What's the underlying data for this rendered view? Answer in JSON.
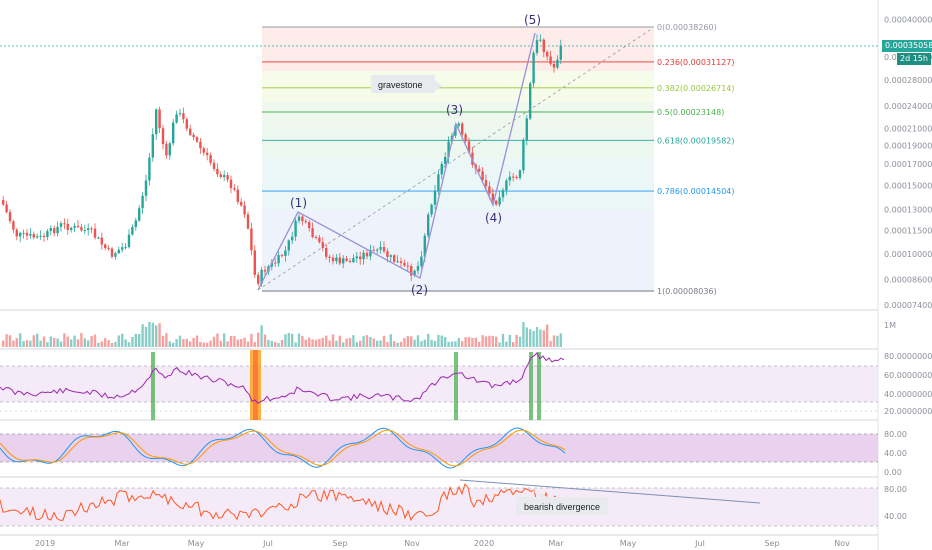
{
  "chart_data": {
    "type": "candlestick",
    "price_axis": {
      "scale": "log",
      "ticks": [
        "0.00040000",
        "0.00032000",
        "0.00028000",
        "0.00024000",
        "0.00021000",
        "0.00019000",
        "0.00017000",
        "0.00015000",
        "0.00013000",
        "0.00011500",
        "0.00010000",
        "0.00008600",
        "0.00007400"
      ]
    },
    "time_axis": {
      "ticks": [
        "2019",
        "Mar",
        "May",
        "Jul",
        "Sep",
        "Nov",
        "2020",
        "Mar",
        "May",
        "Jul",
        "Sep",
        "Nov"
      ]
    },
    "current_price": "0.00035058",
    "countdown": "2d 15h",
    "fib_levels": [
      {
        "ratio": "0",
        "label": "0(0.00038260)",
        "price": 0.0003826,
        "color": "#9598a1"
      },
      {
        "ratio": "0.236",
        "label": "0.236(0.00031127)",
        "price": 0.00031127,
        "color": "#e53935"
      },
      {
        "ratio": "0.382",
        "label": "0.382(0.00026714)",
        "price": 0.00026714,
        "color": "#9bc53d"
      },
      {
        "ratio": "0.5",
        "label": "0.5(0.00023148)",
        "price": 0.00023148,
        "color": "#4caf50"
      },
      {
        "ratio": "0.618",
        "label": "0.618(0.00019582)",
        "price": 0.00019582,
        "color": "#26a69a"
      },
      {
        "ratio": "0.786",
        "label": "0.786(0.00014504)",
        "price": 0.00014504,
        "color": "#2196f3"
      },
      {
        "ratio": "1",
        "label": "1(0.00008036)",
        "price": 8.036e-05,
        "color": "#787b86"
      }
    ],
    "wave_labels": [
      "(1)",
      "(2)",
      "(3)",
      "(4)",
      "(5)"
    ],
    "annotations": [
      "gravestone",
      "bearish divergence"
    ],
    "volume_axis": [
      "1M"
    ],
    "rsi_axis": [
      "80.00000000",
      "60.00000000",
      "40.00000000",
      "20.00000000"
    ],
    "stoch_axis": [
      "80.00",
      "40.00",
      "0.00"
    ],
    "mfi_axis": [
      "80.00",
      "40.00"
    ]
  },
  "colors": {
    "up": "#26a69a",
    "down": "#ef5350",
    "wave_line": "#9b8fd8",
    "indicator_line": "#9c27b0",
    "price_badge": "#26a69a"
  }
}
